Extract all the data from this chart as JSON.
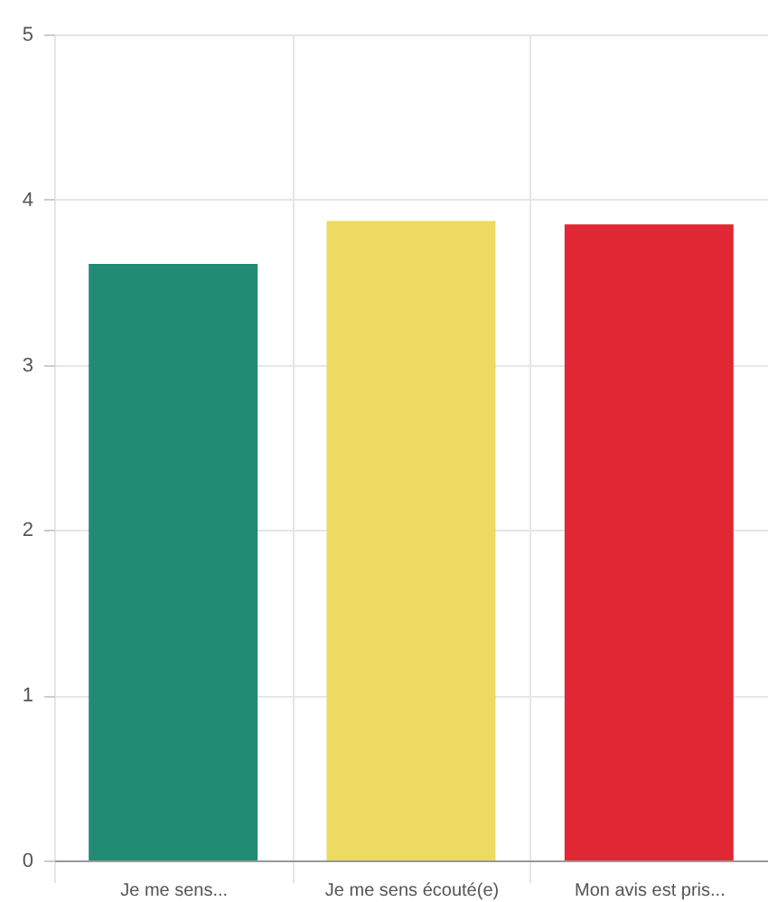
{
  "chart_data": {
    "type": "bar",
    "categories": [
      "Je me sens...",
      "Je me sens écouté(e)",
      "Mon avis est pris..."
    ],
    "values": [
      3.61,
      3.87,
      3.85
    ],
    "colors": [
      "#228b74",
      "#ecda62",
      "#e02835"
    ],
    "ylim": [
      0,
      5
    ],
    "yticks": [
      0,
      1,
      2,
      3,
      4,
      5
    ],
    "grid": true
  }
}
